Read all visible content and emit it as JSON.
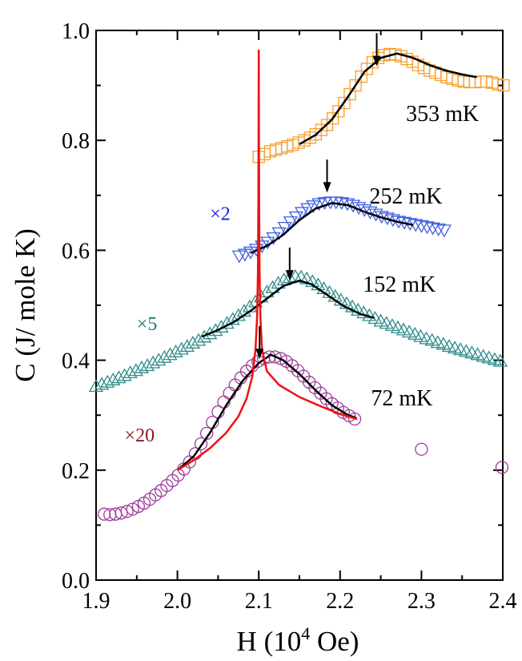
{
  "chart_data": {
    "type": "scatter",
    "title": "",
    "xlabel_main": "H (10",
    "xlabel_sup": "4",
    "xlabel_tail": " Oe)",
    "ylabel": "C (J/ mole K)",
    "xlim": [
      1.9,
      2.4
    ],
    "ylim": [
      0.0,
      1.0
    ],
    "x_ticks": [
      1.9,
      2.0,
      2.1,
      2.2,
      2.3,
      2.4
    ],
    "x_tick_labels": [
      "1.9",
      "2.0",
      "2.1",
      "2.2",
      "2.3",
      "2.4"
    ],
    "y_ticks": [
      0.0,
      0.2,
      0.4,
      0.6,
      0.8,
      1.0
    ],
    "y_tick_labels": [
      "0.0",
      "0.2",
      "0.4",
      "0.6",
      "0.8",
      "1.0"
    ],
    "grid": false,
    "legend": "none",
    "series": [
      {
        "name": "353 mK",
        "marker": "square",
        "color": "#F5A030",
        "label_pos": [
          2.281,
          0.835
        ],
        "arrow_x": 2.245,
        "arrow_from": 0.995,
        "arrow_to": 0.935,
        "points": [
          [
            2.1,
            0.77
          ],
          [
            2.107,
            0.775
          ],
          [
            2.114,
            0.78
          ],
          [
            2.121,
            0.783
          ],
          [
            2.128,
            0.786
          ],
          [
            2.135,
            0.789
          ],
          [
            2.142,
            0.792
          ],
          [
            2.149,
            0.796
          ],
          [
            2.156,
            0.8
          ],
          [
            2.163,
            0.805
          ],
          [
            2.17,
            0.811
          ],
          [
            2.177,
            0.819
          ],
          [
            2.184,
            0.828
          ],
          [
            2.191,
            0.84
          ],
          [
            2.198,
            0.853
          ],
          [
            2.205,
            0.868
          ],
          [
            2.212,
            0.884
          ],
          [
            2.219,
            0.9
          ],
          [
            2.226,
            0.916
          ],
          [
            2.233,
            0.93
          ],
          [
            2.24,
            0.942
          ],
          [
            2.247,
            0.95
          ],
          [
            2.254,
            0.955
          ],
          [
            2.261,
            0.957
          ],
          [
            2.268,
            0.956
          ],
          [
            2.275,
            0.953
          ],
          [
            2.282,
            0.948
          ],
          [
            2.289,
            0.943
          ],
          [
            2.296,
            0.937
          ],
          [
            2.303,
            0.932
          ],
          [
            2.31,
            0.927
          ],
          [
            2.317,
            0.923
          ],
          [
            2.324,
            0.919
          ],
          [
            2.331,
            0.915
          ],
          [
            2.338,
            0.912
          ],
          [
            2.345,
            0.909
          ],
          [
            2.352,
            0.907
          ],
          [
            2.359,
            0.906
          ],
          [
            2.366,
            0.906
          ],
          [
            2.373,
            0.907
          ],
          [
            2.38,
            0.907
          ],
          [
            2.387,
            0.905
          ],
          [
            2.394,
            0.902
          ],
          [
            2.401,
            0.9
          ]
        ],
        "fit": [
          [
            2.15,
            0.793
          ],
          [
            2.17,
            0.81
          ],
          [
            2.19,
            0.838
          ],
          [
            2.21,
            0.88
          ],
          [
            2.23,
            0.925
          ],
          [
            2.25,
            0.95
          ],
          [
            2.27,
            0.958
          ],
          [
            2.29,
            0.95
          ],
          [
            2.31,
            0.937
          ],
          [
            2.33,
            0.927
          ],
          [
            2.35,
            0.92
          ],
          [
            2.368,
            0.915
          ]
        ]
      },
      {
        "name": "252 mK",
        "marker": "triangle-down",
        "color": "#3D5FE0",
        "multiplier_text": "×2",
        "multiplier_color": "#1A1AD0",
        "multiplier_pos": [
          2.04,
          0.655
        ],
        "label_pos": [
          2.236,
          0.685
        ],
        "arrow_x": 2.184,
        "arrow_from": 0.765,
        "arrow_to": 0.705,
        "points": [
          [
            2.076,
            0.59
          ],
          [
            2.083,
            0.593
          ],
          [
            2.09,
            0.597
          ],
          [
            2.097,
            0.602
          ],
          [
            2.104,
            0.608
          ],
          [
            2.111,
            0.615
          ],
          [
            2.118,
            0.623
          ],
          [
            2.125,
            0.632
          ],
          [
            2.132,
            0.642
          ],
          [
            2.139,
            0.652
          ],
          [
            2.146,
            0.661
          ],
          [
            2.153,
            0.669
          ],
          [
            2.16,
            0.676
          ],
          [
            2.167,
            0.681
          ],
          [
            2.174,
            0.685
          ],
          [
            2.181,
            0.687
          ],
          [
            2.188,
            0.688
          ],
          [
            2.195,
            0.688
          ],
          [
            2.202,
            0.687
          ],
          [
            2.209,
            0.685
          ],
          [
            2.216,
            0.682
          ],
          [
            2.223,
            0.678
          ],
          [
            2.23,
            0.674
          ],
          [
            2.237,
            0.67
          ],
          [
            2.244,
            0.666
          ],
          [
            2.251,
            0.662
          ],
          [
            2.258,
            0.659
          ],
          [
            2.265,
            0.656
          ],
          [
            2.272,
            0.653
          ],
          [
            2.279,
            0.651
          ],
          [
            2.286,
            0.649
          ],
          [
            2.293,
            0.647
          ],
          [
            2.3,
            0.645
          ],
          [
            2.307,
            0.643
          ],
          [
            2.314,
            0.641
          ],
          [
            2.321,
            0.639
          ],
          [
            2.328,
            0.637
          ]
        ],
        "fit": [
          [
            2.09,
            0.595
          ],
          [
            2.11,
            0.608
          ],
          [
            2.13,
            0.628
          ],
          [
            2.15,
            0.655
          ],
          [
            2.17,
            0.676
          ],
          [
            2.19,
            0.686
          ],
          [
            2.21,
            0.682
          ],
          [
            2.23,
            0.67
          ],
          [
            2.25,
            0.66
          ],
          [
            2.27,
            0.652
          ],
          [
            2.29,
            0.646
          ]
        ]
      },
      {
        "name": "152 mK",
        "marker": "triangle-up",
        "color": "#2E8B8B",
        "multiplier_text": "×5",
        "multiplier_color": "#1E7B7B",
        "multiplier_pos": [
          1.95,
          0.455
        ],
        "label_pos": [
          2.228,
          0.525
        ],
        "arrow_x": 2.138,
        "arrow_from": 0.605,
        "arrow_to": 0.545,
        "points": [
          [
            1.9,
            0.352
          ],
          [
            1.907,
            0.356
          ],
          [
            1.914,
            0.36
          ],
          [
            1.921,
            0.364
          ],
          [
            1.928,
            0.368
          ],
          [
            1.935,
            0.372
          ],
          [
            1.942,
            0.377
          ],
          [
            1.949,
            0.381
          ],
          [
            1.956,
            0.386
          ],
          [
            1.963,
            0.39
          ],
          [
            1.97,
            0.395
          ],
          [
            1.977,
            0.4
          ],
          [
            1.984,
            0.405
          ],
          [
            1.991,
            0.41
          ],
          [
            1.998,
            0.415
          ],
          [
            2.005,
            0.42
          ],
          [
            2.012,
            0.425
          ],
          [
            2.019,
            0.431
          ],
          [
            2.026,
            0.436
          ],
          [
            2.033,
            0.442
          ],
          [
            2.04,
            0.448
          ],
          [
            2.047,
            0.454
          ],
          [
            2.054,
            0.46
          ],
          [
            2.061,
            0.467
          ],
          [
            2.068,
            0.474
          ],
          [
            2.075,
            0.481
          ],
          [
            2.082,
            0.489
          ],
          [
            2.089,
            0.497
          ],
          [
            2.096,
            0.506
          ],
          [
            2.103,
            0.515
          ],
          [
            2.11,
            0.524
          ],
          [
            2.117,
            0.532
          ],
          [
            2.124,
            0.54
          ],
          [
            2.131,
            0.546
          ],
          [
            2.138,
            0.55
          ],
          [
            2.145,
            0.552
          ],
          [
            2.152,
            0.551
          ],
          [
            2.159,
            0.548
          ],
          [
            2.166,
            0.543
          ],
          [
            2.173,
            0.537
          ],
          [
            2.18,
            0.53
          ],
          [
            2.187,
            0.523
          ],
          [
            2.194,
            0.516
          ],
          [
            2.201,
            0.509
          ],
          [
            2.208,
            0.503
          ],
          [
            2.215,
            0.497
          ],
          [
            2.222,
            0.491
          ],
          [
            2.229,
            0.486
          ],
          [
            2.236,
            0.481
          ],
          [
            2.243,
            0.476
          ],
          [
            2.25,
            0.471
          ],
          [
            2.257,
            0.467
          ],
          [
            2.264,
            0.463
          ],
          [
            2.271,
            0.459
          ],
          [
            2.278,
            0.455
          ],
          [
            2.285,
            0.451
          ],
          [
            2.292,
            0.447
          ],
          [
            2.299,
            0.443
          ],
          [
            2.306,
            0.439
          ],
          [
            2.313,
            0.436
          ],
          [
            2.32,
            0.432
          ],
          [
            2.327,
            0.429
          ],
          [
            2.334,
            0.425
          ],
          [
            2.341,
            0.422
          ],
          [
            2.348,
            0.419
          ],
          [
            2.355,
            0.416
          ],
          [
            2.362,
            0.413
          ],
          [
            2.369,
            0.41
          ],
          [
            2.376,
            0.407
          ],
          [
            2.383,
            0.404
          ],
          [
            2.39,
            0.401
          ],
          [
            2.397,
            0.398
          ]
        ],
        "fit": [
          [
            2.03,
            0.443
          ],
          [
            2.05,
            0.455
          ],
          [
            2.07,
            0.47
          ],
          [
            2.09,
            0.49
          ],
          [
            2.11,
            0.512
          ],
          [
            2.13,
            0.535
          ],
          [
            2.15,
            0.545
          ],
          [
            2.165,
            0.538
          ],
          [
            2.185,
            0.518
          ],
          [
            2.205,
            0.498
          ],
          [
            2.225,
            0.484
          ],
          [
            2.242,
            0.477
          ]
        ]
      },
      {
        "name": "72 mK",
        "marker": "circle",
        "color": "#9B3C9B",
        "multiplier_text": "×20",
        "multiplier_color": "#8B1A1A",
        "multiplier_pos": [
          1.935,
          0.252
        ],
        "label_pos": [
          2.238,
          0.318
        ],
        "arrow_x": 2.101,
        "arrow_from": 0.462,
        "arrow_to": 0.402,
        "points": [
          [
            1.91,
            0.12
          ],
          [
            1.917,
            0.119
          ],
          [
            1.924,
            0.12
          ],
          [
            1.931,
            0.122
          ],
          [
            1.938,
            0.125
          ],
          [
            1.945,
            0.129
          ],
          [
            1.952,
            0.134
          ],
          [
            1.959,
            0.14
          ],
          [
            1.966,
            0.147
          ],
          [
            1.973,
            0.155
          ],
          [
            1.98,
            0.163
          ],
          [
            1.987,
            0.172
          ],
          [
            1.994,
            0.181
          ],
          [
            2.001,
            0.191
          ],
          [
            2.008,
            0.202
          ],
          [
            2.015,
            0.215
          ],
          [
            2.022,
            0.23
          ],
          [
            2.029,
            0.248
          ],
          [
            2.036,
            0.267
          ],
          [
            2.043,
            0.287
          ],
          [
            2.05,
            0.306
          ],
          [
            2.057,
            0.324
          ],
          [
            2.064,
            0.34
          ],
          [
            2.071,
            0.355
          ],
          [
            2.078,
            0.368
          ],
          [
            2.085,
            0.38
          ],
          [
            2.092,
            0.39
          ],
          [
            2.099,
            0.398
          ],
          [
            2.106,
            0.403
          ],
          [
            2.113,
            0.406
          ],
          [
            2.12,
            0.406
          ],
          [
            2.127,
            0.403
          ],
          [
            2.134,
            0.398
          ],
          [
            2.141,
            0.39
          ],
          [
            2.148,
            0.381
          ],
          [
            2.155,
            0.371
          ],
          [
            2.162,
            0.36
          ],
          [
            2.169,
            0.35
          ],
          [
            2.176,
            0.34
          ],
          [
            2.183,
            0.33
          ],
          [
            2.19,
            0.321
          ],
          [
            2.197,
            0.313
          ],
          [
            2.204,
            0.305
          ],
          [
            2.211,
            0.299
          ],
          [
            2.218,
            0.293
          ],
          [
            2.3,
            0.238
          ],
          [
            2.399,
            0.205
          ]
        ],
        "fit": [
          [
            2.0,
            0.2
          ],
          [
            2.02,
            0.225
          ],
          [
            2.04,
            0.268
          ],
          [
            2.06,
            0.318
          ],
          [
            2.08,
            0.362
          ],
          [
            2.1,
            0.395
          ],
          [
            2.115,
            0.41
          ],
          [
            2.13,
            0.4
          ],
          [
            2.15,
            0.375
          ],
          [
            2.17,
            0.345
          ],
          [
            2.19,
            0.318
          ],
          [
            2.21,
            0.3
          ],
          [
            2.22,
            0.295
          ]
        ]
      }
    ],
    "red_curve": {
      "color": "#EE1111",
      "points": [
        [
          2.0,
          0.2
        ],
        [
          2.02,
          0.218
        ],
        [
          2.04,
          0.24
        ],
        [
          2.06,
          0.268
        ],
        [
          2.075,
          0.298
        ],
        [
          2.085,
          0.33
        ],
        [
          2.092,
          0.37
        ],
        [
          2.096,
          0.42
        ],
        [
          2.098,
          0.48
        ],
        [
          2.099,
          0.56
        ],
        [
          2.0995,
          0.68
        ],
        [
          2.0998,
          0.82
        ],
        [
          2.1,
          0.965
        ],
        [
          2.1002,
          0.82
        ],
        [
          2.1005,
          0.68
        ],
        [
          2.101,
          0.56
        ],
        [
          2.102,
          0.48
        ],
        [
          2.104,
          0.42
        ],
        [
          2.11,
          0.38
        ],
        [
          2.125,
          0.355
        ],
        [
          2.15,
          0.333
        ],
        [
          2.175,
          0.317
        ],
        [
          2.2,
          0.302
        ],
        [
          2.221,
          0.293
        ]
      ]
    }
  }
}
